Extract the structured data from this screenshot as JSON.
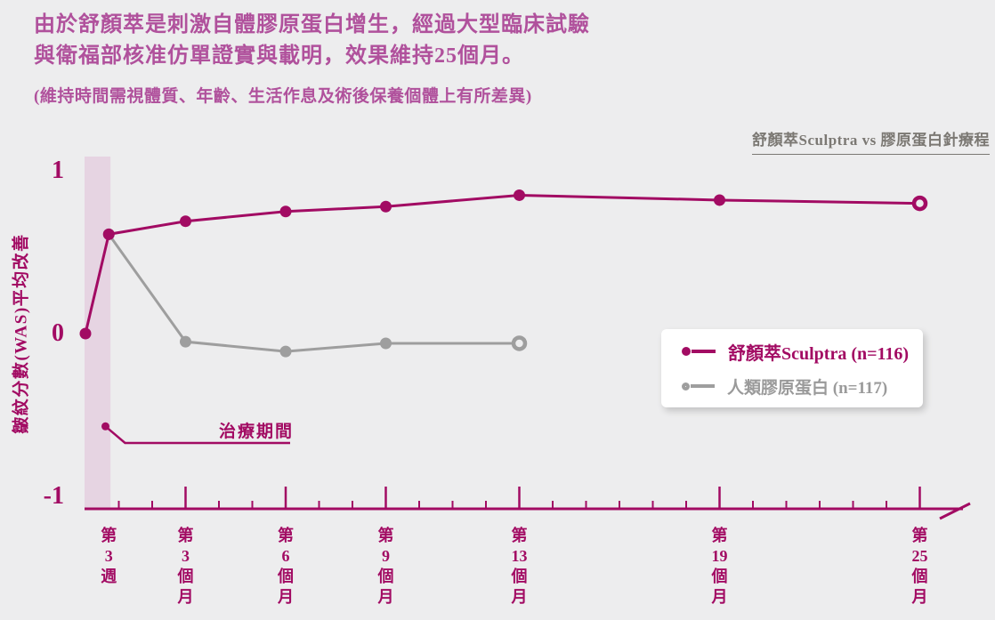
{
  "header": {
    "title_line1": "由於舒顏萃是刺激自體膠原蛋白增生，經過大型臨床試驗",
    "title_line2": "與衛福部核准仿單證實與載明，效果維持25個月。",
    "disclaimer": "(維持時間需視體質、年齡、生活作息及術後保養個體上有所差異)"
  },
  "chart_heading": "舒顏萃Sculptra vs 膠原蛋白針療程",
  "legend": {
    "items": [
      {
        "label": "舒顏萃Sculptra (n=116)",
        "color": "#a20b63",
        "marker": "open-circle-with-line"
      },
      {
        "label": "人類膠原蛋白 (n=117)",
        "color": "#9e9e9e",
        "marker": "open-circle-with-line"
      }
    ]
  },
  "annotation": {
    "label": "治療期間",
    "dot_month": 0.6,
    "dot_value": -0.57
  },
  "colors": {
    "background": "#ededee",
    "title_pink": "#b0519c",
    "axis_magenta": "#a20b63",
    "series_sculptra": "#a20b63",
    "series_collagen": "#9e9e9e",
    "treatment_band": "#e6d4e2",
    "heading_gray": "#7b7873",
    "legend_bg": "#ffffff"
  },
  "chart_data": {
    "type": "line",
    "title": "舒顏萃Sculptra vs 膠原蛋白針療程",
    "xlabel": "",
    "ylabel": "皺紋分數(WAS)平均改善",
    "x_unit": "months",
    "ylim": [
      -1,
      1
    ],
    "grid": false,
    "legend_position": "right-middle",
    "y_ticks": [
      {
        "value": 1,
        "label": "1"
      },
      {
        "value": 0,
        "label": "0"
      },
      {
        "value": -1,
        "label": "-1"
      }
    ],
    "x_major_tick_months": [
      3,
      6,
      9,
      13,
      19,
      25
    ],
    "x_minor_tick_months": [
      1,
      2,
      4,
      5,
      7,
      8,
      10,
      11,
      12,
      14,
      15,
      16,
      17,
      18,
      20,
      21,
      22,
      23,
      24
    ],
    "x_tick_labels": [
      {
        "month": 0.7,
        "lines": [
          "第",
          "3",
          "週"
        ]
      },
      {
        "month": 3,
        "lines": [
          "第",
          "3",
          "個",
          "月"
        ]
      },
      {
        "month": 6,
        "lines": [
          "第",
          "6",
          "個",
          "月"
        ]
      },
      {
        "month": 9,
        "lines": [
          "第",
          "9",
          "個",
          "月"
        ]
      },
      {
        "month": 13,
        "lines": [
          "第",
          "13",
          "個",
          "月"
        ]
      },
      {
        "month": 19,
        "lines": [
          "第",
          "19",
          "個",
          "月"
        ]
      },
      {
        "month": 25,
        "lines": [
          "第",
          "25",
          "個",
          "月"
        ]
      }
    ],
    "treatment_band": {
      "from_month": 0,
      "to_month": 0.75,
      "label": "治療期間"
    },
    "series": [
      {
        "name": "人類膠原蛋白 (n=117)",
        "color": "#9e9e9e",
        "last_marker": "open",
        "points": [
          {
            "month": 0.7,
            "value": 0.61
          },
          {
            "month": 3,
            "value": -0.05
          },
          {
            "month": 6,
            "value": -0.11
          },
          {
            "month": 9,
            "value": -0.06
          },
          {
            "month": 13,
            "value": -0.06
          }
        ]
      },
      {
        "name": "舒顏萃Sculptra (n=116)",
        "color": "#a20b63",
        "last_marker": "open",
        "points": [
          {
            "month": 0,
            "value": 0.0
          },
          {
            "month": 0.7,
            "value": 0.61
          },
          {
            "month": 3,
            "value": 0.69
          },
          {
            "month": 6,
            "value": 0.75
          },
          {
            "month": 9,
            "value": 0.78
          },
          {
            "month": 13,
            "value": 0.85
          },
          {
            "month": 19,
            "value": 0.82
          },
          {
            "month": 25,
            "value": 0.8
          }
        ]
      }
    ]
  }
}
